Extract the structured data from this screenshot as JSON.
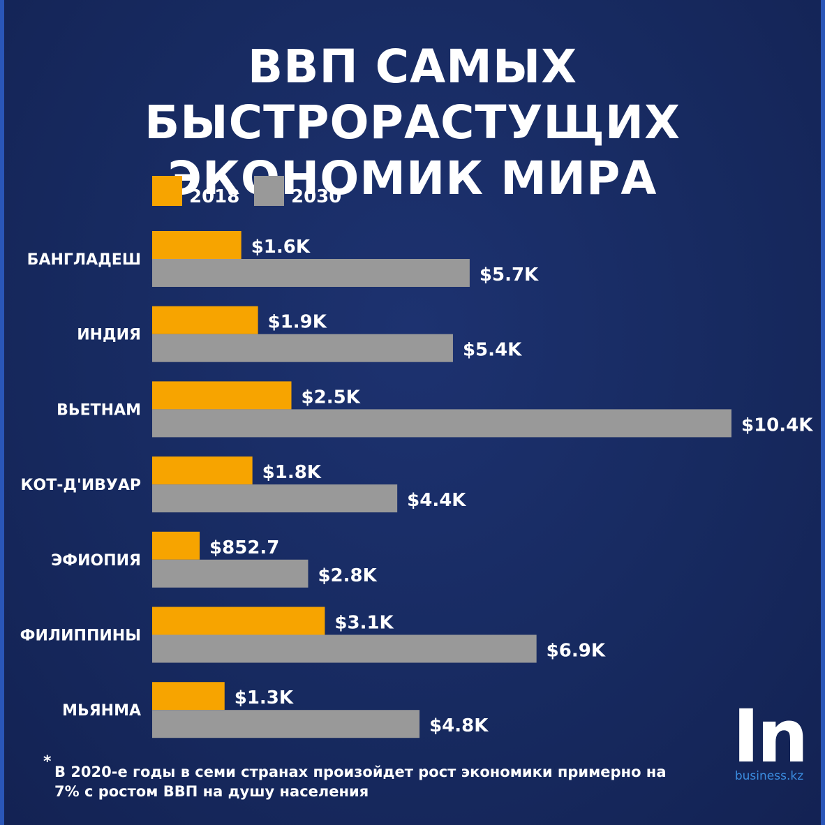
{
  "title_line1": "ВВП САМЫХ БЫСТРОРАСТУЩИХ",
  "title_line2": "ЭКОНОМИК МИРА",
  "footnote": {
    "marker": "*",
    "text": "В 2020-е годы в семи странах произойдет рост экономики примерно на 7% с ростом ВВП на душу населения"
  },
  "logo": {
    "mark": "In",
    "site": "business.kz"
  },
  "colors": {
    "background": "#172a60",
    "series_2018": "#f7a400",
    "series_2030": "#999999",
    "text": "#ffffff",
    "logo_site": "#3b8de0"
  },
  "chart_data": {
    "type": "bar",
    "orientation": "horizontal",
    "title": "ВВП САМЫХ БЫСТРОРАСТУЩИХ ЭКОНОМИК МИРА",
    "categories": [
      "БАНГЛАДЕШ",
      "ИНДИЯ",
      "ВЬЕТНАМ",
      "КОТ-Д'ИВУАР",
      "ЭФИОПИЯ",
      "ФИЛИППИНЫ",
      "МЬЯНМА"
    ],
    "series": [
      {
        "name": "2018",
        "color": "#f7a400",
        "values": [
          1600,
          1900,
          2500,
          1800,
          852.7,
          3100,
          1300
        ],
        "labels": [
          "$1.6K",
          "$1.9K",
          "$2.5K",
          "$1.8K",
          "$852.7",
          "$3.1K",
          "$1.3K"
        ]
      },
      {
        "name": "2030",
        "color": "#999999",
        "values": [
          5700,
          5400,
          10400,
          4400,
          2800,
          6900,
          4800
        ],
        "labels": [
          "$5.7K",
          "$5.4K",
          "$10.4K",
          "$4.4K",
          "$2.8K",
          "$6.9K",
          "$4.8K"
        ]
      }
    ],
    "xlim": [
      0,
      10400
    ],
    "xlabel": "",
    "ylabel": "",
    "grid": false,
    "legend": "top-left"
  }
}
